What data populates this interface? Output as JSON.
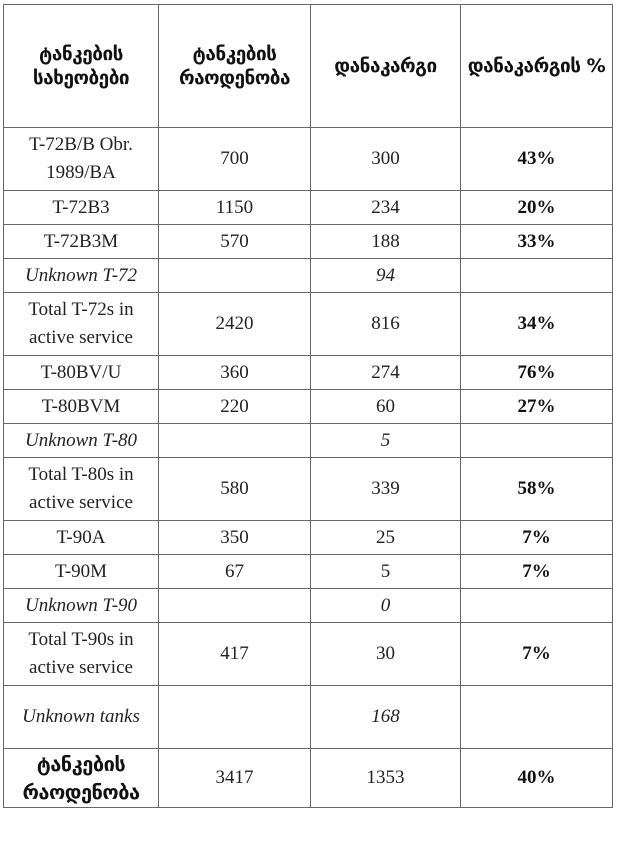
{
  "headers": [
    "ტანკების სახეობები",
    "ტანკების რაოდენობა",
    "დანაკარგი",
    "დანაკარგის %"
  ],
  "rows": [
    {
      "label": "T-72B/B Obr. 1989/BA",
      "count": "700",
      "loss": "300",
      "pct": "43%",
      "italic": false
    },
    {
      "label": "T-72B3",
      "count": "1150",
      "loss": "234",
      "pct": "20%",
      "italic": false
    },
    {
      "label": "T-72B3M",
      "count": "570",
      "loss": "188",
      "pct": "33%",
      "italic": false
    },
    {
      "label": "Unknown T-72",
      "count": "",
      "loss": "94",
      "pct": "",
      "italic": true
    },
    {
      "label": "Total T-72s in active service",
      "count": "2420",
      "loss": "816",
      "pct": "34%",
      "italic": false
    },
    {
      "label": "T-80BV/U",
      "count": "360",
      "loss": "274",
      "pct": "76%",
      "italic": false
    },
    {
      "label": "T-80BVM",
      "count": "220",
      "loss": "60",
      "pct": "27%",
      "italic": false
    },
    {
      "label": "Unknown T-80",
      "count": "",
      "loss": "5",
      "pct": "",
      "italic": true
    },
    {
      "label": "Total T-80s in active service",
      "count": "580",
      "loss": "339",
      "pct": "58%",
      "italic": false
    },
    {
      "label": "T-90A",
      "count": "350",
      "loss": "25",
      "pct": "7%",
      "italic": false
    },
    {
      "label": "T-90M",
      "count": "67",
      "loss": "5",
      "pct": "7%",
      "italic": false
    },
    {
      "label": "Unknown T-90",
      "count": "",
      "loss": "0",
      "pct": "",
      "italic": true
    },
    {
      "label": "Total T-90s in active service",
      "count": "417",
      "loss": "30",
      "pct": "7%",
      "italic": false
    },
    {
      "label": "Unknown tanks",
      "count": "",
      "loss": "168",
      "pct": "",
      "italic": true
    }
  ],
  "footer": {
    "label": "ტანკების რაოდენობა",
    "count": "3417",
    "loss": "1353",
    "pct": "40%"
  }
}
